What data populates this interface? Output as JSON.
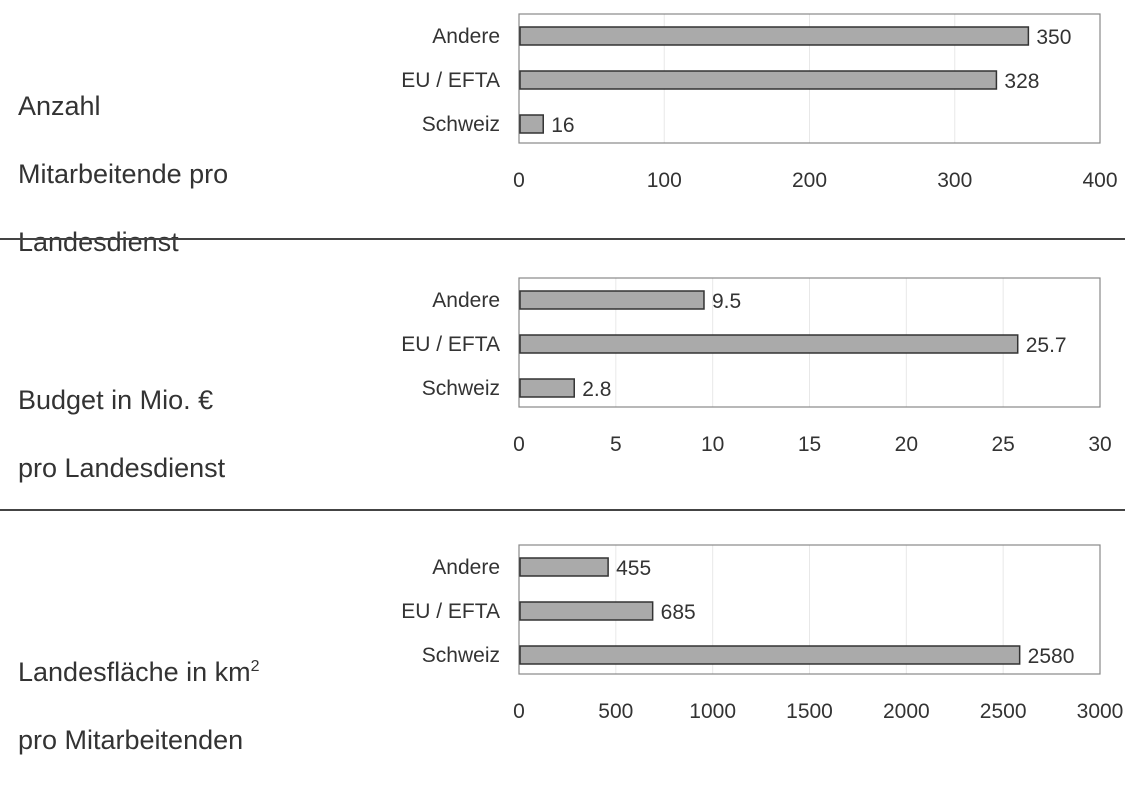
{
  "colors": {
    "bar_fill": "#aaaaaa",
    "bar_stroke": "#333333",
    "frame": "#888888",
    "grid": "#e8e8e8",
    "text": "#333333"
  },
  "panels": [
    {
      "title_lines": [
        "Anzahl",
        "Mitarbeitende pro",
        "Landesdienst"
      ],
      "superscript": ""
    },
    {
      "title_lines": [
        "Budget in Mio. €",
        "pro Landesdienst"
      ],
      "superscript": ""
    },
    {
      "title_lines": [
        "Landesfläche in km",
        "pro Mitarbeitenden"
      ],
      "superscript": "2"
    }
  ],
  "chart_data": [
    {
      "type": "bar",
      "orientation": "horizontal",
      "title": "Anzahl Mitarbeitende pro Landesdienst",
      "categories": [
        "Andere",
        "EU / EFTA",
        "Schweiz"
      ],
      "values": [
        350,
        328,
        16
      ],
      "value_labels": [
        "350",
        "328",
        "16"
      ],
      "xlim": [
        0,
        400
      ],
      "xticks": [
        0,
        100,
        200,
        300,
        400
      ],
      "grid": true,
      "legend": "none"
    },
    {
      "type": "bar",
      "orientation": "horizontal",
      "title": "Budget in Mio. € pro Landesdienst",
      "categories": [
        "Andere",
        "EU / EFTA",
        "Schweiz"
      ],
      "values": [
        9.5,
        25.7,
        2.8
      ],
      "value_labels": [
        "9.5",
        "25.7",
        "2.8"
      ],
      "xlim": [
        0,
        30
      ],
      "xticks": [
        0,
        5,
        10,
        15,
        20,
        25,
        30
      ],
      "grid": true,
      "legend": "none"
    },
    {
      "type": "bar",
      "orientation": "horizontal",
      "title": "Landesfläche in km2 pro Mitarbeitenden",
      "categories": [
        "Andere",
        "EU / EFTA",
        "Schweiz"
      ],
      "values": [
        455,
        685,
        2580
      ],
      "value_labels": [
        "455",
        "685",
        "2580"
      ],
      "xlim": [
        0,
        3000
      ],
      "xticks": [
        0,
        500,
        1000,
        1500,
        2000,
        2500,
        3000
      ],
      "grid": true,
      "legend": "none"
    }
  ]
}
